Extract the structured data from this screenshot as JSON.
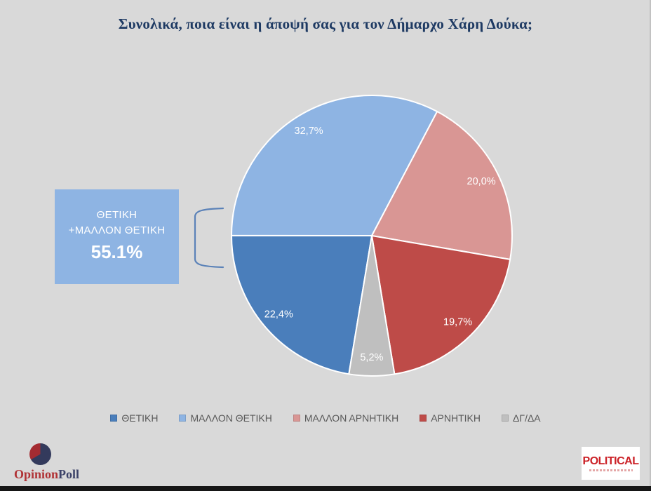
{
  "title": "Συνολικά, ποια είναι η άποψή σας για τον Δήμαρχο Χάρη Δούκα;",
  "colors": {
    "background": "#d9d9d9",
    "title_text": "#1e3a63",
    "bracket": "#5b82b8",
    "slice_stroke": "#ffffff",
    "legend_text": "#595959"
  },
  "chart_data": {
    "type": "pie",
    "title": "Συνολικά, ποια είναι η άποψή σας για τον Δήμαρχο Χάρη Δούκα;",
    "series": [
      {
        "label": "ΘΕΤΙΚΗ",
        "value": 22.4,
        "display": "22,4%",
        "color": "#4a7ebb"
      },
      {
        "label": "ΜΑΛΛΟΝ ΘΕΤΙΚΗ",
        "value": 32.7,
        "display": "32,7%",
        "color": "#8eb4e3"
      },
      {
        "label": "ΜΑΛΛΟΝ ΑΡΝΗΤΙΚΗ",
        "value": 20.0,
        "display": "20,0%",
        "color": "#d99694"
      },
      {
        "label": "ΑΡΝΗΤΙΚΗ",
        "value": 19.7,
        "display": "19,7%",
        "color": "#be4b48"
      },
      {
        "label": "ΔΓ/ΔΑ",
        "value": 5.2,
        "display": "5,2%",
        "color": "#bfbfbf"
      }
    ],
    "start_angle_deg": 189.4,
    "clockwise": true,
    "label_radius_frac": 0.87,
    "label_color": "#ffffff",
    "legend_position": "bottom"
  },
  "callout": {
    "line1": "ΘΕΤΙΚΗ",
    "line2": "+ΜΑΛΛΟΝ ΘΕΤΙΚΗ",
    "value": "55.1%",
    "bg_color": "#8eb4e3"
  },
  "footer": {
    "opinionpoll": {
      "part1": "Opinion",
      "part2": "Poll"
    },
    "political": {
      "label": "POLITICAL"
    }
  }
}
